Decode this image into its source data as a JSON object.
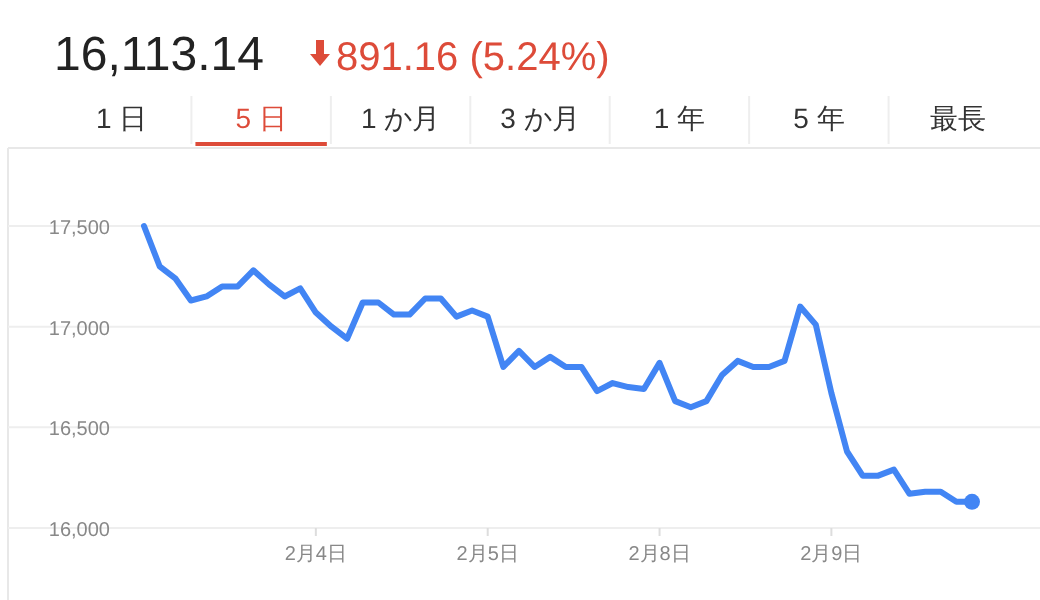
{
  "chart_data": {
    "type": "line",
    "title": "16,113.14",
    "subtitle": "891.16 (5.24%)",
    "annotations": [
      "1 日",
      "5 日",
      "1 か月",
      "3 か月",
      "1 年",
      "5 年",
      "最長"
    ],
    "categories": [
      null,
      null,
      null,
      null,
      null,
      null,
      null,
      null,
      null,
      null,
      null,
      "2月4日",
      null,
      null,
      null,
      null,
      null,
      null,
      null,
      null,
      null,
      null,
      "2月5日",
      null,
      null,
      null,
      null,
      null,
      null,
      null,
      null,
      null,
      null,
      "2月8日",
      null,
      null,
      null,
      null,
      null,
      null,
      null,
      null,
      null,
      null,
      "2月9日",
      null,
      null,
      null,
      null,
      null,
      null,
      null,
      null,
      null
    ],
    "series": [
      {
        "color": "#4285f4",
        "values": [
          17500,
          17300,
          17240,
          17130,
          17150,
          17200,
          17200,
          17280,
          17210,
          17150,
          17190,
          17070,
          17000,
          16940,
          17120,
          17120,
          17060,
          17060,
          17140,
          17140,
          17050,
          17080,
          17050,
          16800,
          16880,
          16800,
          16850,
          16800,
          16800,
          16680,
          16720,
          16700,
          16690,
          16820,
          16630,
          16600,
          16630,
          16760,
          16830,
          16800,
          16800,
          16830,
          17100,
          17010,
          16670,
          16380,
          16260,
          16260,
          16290,
          16170,
          16180,
          16180,
          16130,
          16130
        ]
      },
      {
        "type": "scatter",
        "color": "#4285f4",
        "values": [
          null,
          null,
          null,
          null,
          null,
          null,
          null,
          null,
          null,
          null,
          null,
          null,
          null,
          null,
          null,
          null,
          null,
          null,
          null,
          null,
          null,
          null,
          null,
          null,
          null,
          null,
          null,
          null,
          null,
          null,
          null,
          null,
          null,
          null,
          null,
          null,
          null,
          null,
          null,
          null,
          null,
          null,
          null,
          null,
          null,
          null,
          null,
          null,
          null,
          null,
          null,
          null,
          null,
          16130
        ]
      }
    ],
    "ylim": [
      16000,
      17500
    ],
    "yticks": [
      {
        "value": 16000,
        "label": "16,000"
      },
      {
        "value": 16500,
        "label": "16,500"
      },
      {
        "value": 17000,
        "label": "17,000"
      },
      {
        "value": 17500,
        "label": "17,500"
      }
    ],
    "grid": "y"
  }
}
